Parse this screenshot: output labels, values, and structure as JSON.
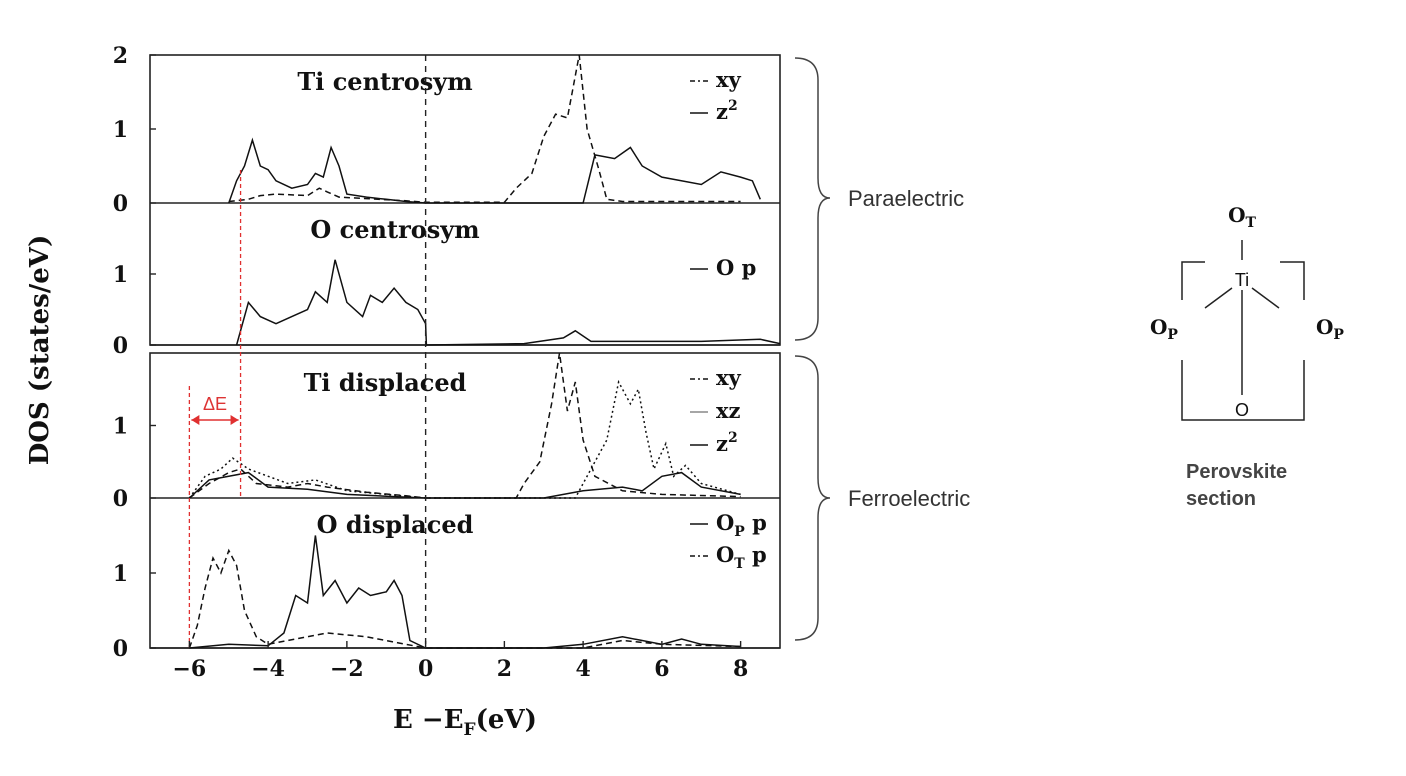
{
  "chart_data": {
    "type": "line",
    "xlabel": "E −E",
    "xlabel_sub": "F",
    "xlabel_unit": "(eV)",
    "ylabel": "DOS (states/eV)",
    "xlim": [
      -7,
      9
    ],
    "xticks": [
      "−6",
      "−4",
      "−2",
      "0",
      "2",
      "4",
      "6",
      "8"
    ],
    "xtick_values": [
      -6,
      -4,
      -2,
      0,
      2,
      4,
      6,
      8
    ],
    "fermi_level": 0,
    "panels": [
      {
        "title": "Ti centrosym",
        "ylim": [
          0,
          2
        ],
        "yticks": [
          "0",
          "1",
          "2"
        ],
        "ytick_values": [
          0,
          1,
          2
        ],
        "legend": [
          {
            "label": "xy",
            "style": "dash-dot"
          },
          {
            "label": "z",
            "sup": "2",
            "style": "solid"
          }
        ],
        "series": [
          {
            "label": "xy",
            "style": "dashed",
            "points": [
              [
                -5,
                0.02
              ],
              [
                -4.5,
                0.05
              ],
              [
                -4.2,
                0.1
              ],
              [
                -3.8,
                0.12
              ],
              [
                -3,
                0.1
              ],
              [
                -2.7,
                0.2
              ],
              [
                -2.5,
                0.15
              ],
              [
                -2.2,
                0.08
              ],
              [
                -1.5,
                0.06
              ],
              [
                -0.5,
                0.03
              ],
              [
                0,
                0.01
              ],
              [
                2,
                0.01
              ],
              [
                2.3,
                0.2
              ],
              [
                2.7,
                0.4
              ],
              [
                3,
                0.9
              ],
              [
                3.3,
                1.2
              ],
              [
                3.6,
                1.15
              ],
              [
                3.9,
                2.0
              ],
              [
                4.1,
                1.0
              ],
              [
                4.4,
                0.45
              ],
              [
                4.6,
                0.05
              ],
              [
                5,
                0.02
              ],
              [
                8,
                0.02
              ]
            ]
          },
          {
            "label": "z2",
            "style": "solid",
            "points": [
              [
                -5,
                0
              ],
              [
                -4.8,
                0.3
              ],
              [
                -4.6,
                0.5
              ],
              [
                -4.4,
                0.85
              ],
              [
                -4.2,
                0.5
              ],
              [
                -4,
                0.45
              ],
              [
                -3.8,
                0.3
              ],
              [
                -3.4,
                0.2
              ],
              [
                -3,
                0.25
              ],
              [
                -2.8,
                0.4
              ],
              [
                -2.6,
                0.35
              ],
              [
                -2.4,
                0.75
              ],
              [
                -2.2,
                0.5
              ],
              [
                -2,
                0.12
              ],
              [
                -1.5,
                0.08
              ],
              [
                -1,
                0.05
              ],
              [
                -0.5,
                0.02
              ],
              [
                0,
                0
              ],
              [
                4,
                0
              ],
              [
                4.3,
                0.65
              ],
              [
                4.8,
                0.6
              ],
              [
                5.2,
                0.75
              ],
              [
                5.5,
                0.5
              ],
              [
                6,
                0.35
              ],
              [
                7,
                0.25
              ],
              [
                7.5,
                0.42
              ],
              [
                8,
                0.35
              ],
              [
                8.3,
                0.3
              ],
              [
                8.5,
                0.05
              ]
            ]
          }
        ]
      },
      {
        "title": "O centrosym",
        "ylim": [
          0,
          2
        ],
        "yticks": [
          "0",
          "1"
        ],
        "ytick_values": [
          0,
          1
        ],
        "legend": [
          {
            "label": "O p",
            "style": "solid"
          }
        ],
        "series": [
          {
            "label": "O p",
            "style": "solid",
            "points": [
              [
                -4.8,
                0
              ],
              [
                -4.5,
                0.6
              ],
              [
                -4.2,
                0.4
              ],
              [
                -3.8,
                0.3
              ],
              [
                -3.4,
                0.4
              ],
              [
                -3,
                0.5
              ],
              [
                -2.8,
                0.75
              ],
              [
                -2.5,
                0.6
              ],
              [
                -2.3,
                1.2
              ],
              [
                -2,
                0.6
              ],
              [
                -1.6,
                0.4
              ],
              [
                -1.4,
                0.7
              ],
              [
                -1.1,
                0.6
              ],
              [
                -0.8,
                0.8
              ],
              [
                -0.5,
                0.6
              ],
              [
                -0.2,
                0.5
              ],
              [
                0,
                0.3
              ],
              [
                0.02,
                0
              ],
              [
                2.5,
                0.02
              ],
              [
                3.5,
                0.1
              ],
              [
                3.8,
                0.2
              ],
              [
                4.2,
                0.05
              ],
              [
                7,
                0.05
              ],
              [
                8.5,
                0.08
              ],
              [
                9,
                0.02
              ]
            ]
          }
        ]
      },
      {
        "title": "Ti displaced",
        "ylim": [
          0,
          2
        ],
        "yticks": [
          "0",
          "1"
        ],
        "ytick_values": [
          0,
          1
        ],
        "legend": [
          {
            "label": "xy",
            "style": "dash-dot"
          },
          {
            "label": "xz",
            "style": "thin"
          },
          {
            "label": "z",
            "sup": "2",
            "style": "solid"
          }
        ],
        "series": [
          {
            "label": "xy",
            "style": "dashed",
            "points": [
              [
                -6,
                0
              ],
              [
                -5.5,
                0.2
              ],
              [
                -5,
                0.35
              ],
              [
                -4.7,
                0.4
              ],
              [
                -4.3,
                0.2
              ],
              [
                -3.5,
                0.15
              ],
              [
                -3,
                0.2
              ],
              [
                -2.5,
                0.15
              ],
              [
                -1.5,
                0.08
              ],
              [
                -0.5,
                0.03
              ],
              [
                0,
                0
              ],
              [
                2.3,
                0
              ],
              [
                2.5,
                0.2
              ],
              [
                2.9,
                0.5
              ],
              [
                3.2,
                1.3
              ],
              [
                3.4,
                2.0
              ],
              [
                3.6,
                1.2
              ],
              [
                3.8,
                1.6
              ],
              [
                4,
                0.8
              ],
              [
                4.3,
                0.3
              ],
              [
                5,
                0.1
              ],
              [
                6,
                0.05
              ],
              [
                8,
                0.02
              ]
            ]
          },
          {
            "label": "xz",
            "style": "dotted",
            "points": [
              [
                -6,
                0
              ],
              [
                -5.6,
                0.3
              ],
              [
                -5.2,
                0.4
              ],
              [
                -4.9,
                0.55
              ],
              [
                -4.5,
                0.4
              ],
              [
                -4,
                0.3
              ],
              [
                -3.5,
                0.2
              ],
              [
                -2.8,
                0.25
              ],
              [
                -2,
                0.1
              ],
              [
                -1,
                0.05
              ],
              [
                0,
                0
              ],
              [
                3.8,
                0
              ],
              [
                4.2,
                0.4
              ],
              [
                4.6,
                0.8
              ],
              [
                4.9,
                1.6
              ],
              [
                5.2,
                1.3
              ],
              [
                5.4,
                1.5
              ],
              [
                5.6,
                0.9
              ],
              [
                5.8,
                0.4
              ],
              [
                6.1,
                0.75
              ],
              [
                6.3,
                0.3
              ],
              [
                6.6,
                0.45
              ],
              [
                7,
                0.2
              ],
              [
                8,
                0.05
              ]
            ]
          },
          {
            "label": "z2",
            "style": "solid",
            "points": [
              [
                -6,
                0
              ],
              [
                -5.5,
                0.25
              ],
              [
                -5,
                0.3
              ],
              [
                -4.5,
                0.35
              ],
              [
                -4,
                0.15
              ],
              [
                -3,
                0.12
              ],
              [
                -2,
                0.05
              ],
              [
                0,
                0
              ],
              [
                3,
                0
              ],
              [
                4,
                0.1
              ],
              [
                5,
                0.15
              ],
              [
                5.5,
                0.1
              ],
              [
                6,
                0.3
              ],
              [
                6.5,
                0.35
              ],
              [
                7,
                0.15
              ],
              [
                8,
                0.05
              ]
            ]
          }
        ]
      },
      {
        "title": "O displaced",
        "ylim": [
          0,
          2
        ],
        "yticks": [
          "0",
          "1"
        ],
        "ytick_values": [
          0,
          1
        ],
        "legend": [
          {
            "label": "O",
            "sub": "P",
            "suffix": " p",
            "style": "solid"
          },
          {
            "label": "O",
            "sub": "T",
            "suffix": " p",
            "style": "dash-dot"
          }
        ],
        "series": [
          {
            "label": "OP p",
            "style": "solid",
            "points": [
              [
                -6,
                0
              ],
              [
                -5,
                0.05
              ],
              [
                -4,
                0.03
              ],
              [
                -3.6,
                0.2
              ],
              [
                -3.3,
                0.7
              ],
              [
                -3,
                0.6
              ],
              [
                -2.8,
                1.5
              ],
              [
                -2.6,
                0.7
              ],
              [
                -2.3,
                0.9
              ],
              [
                -2,
                0.6
              ],
              [
                -1.7,
                0.8
              ],
              [
                -1.4,
                0.7
              ],
              [
                -1,
                0.75
              ],
              [
                -0.8,
                0.9
              ],
              [
                -0.6,
                0.7
              ],
              [
                -0.4,
                0.1
              ],
              [
                0,
                0
              ],
              [
                3,
                0
              ],
              [
                4,
                0.05
              ],
              [
                5,
                0.15
              ],
              [
                5.5,
                0.1
              ],
              [
                6,
                0.05
              ],
              [
                6.5,
                0.12
              ],
              [
                7,
                0.05
              ],
              [
                8,
                0.02
              ]
            ]
          },
          {
            "label": "OT p",
            "style": "dashed",
            "points": [
              [
                -6,
                0
              ],
              [
                -5.8,
                0.3
              ],
              [
                -5.6,
                0.8
              ],
              [
                -5.4,
                1.2
              ],
              [
                -5.2,
                1.0
              ],
              [
                -5,
                1.3
              ],
              [
                -4.8,
                1.1
              ],
              [
                -4.6,
                0.5
              ],
              [
                -4.3,
                0.15
              ],
              [
                -4,
                0.05
              ],
              [
                -3.5,
                0.1
              ],
              [
                -2.5,
                0.2
              ],
              [
                -1.5,
                0.15
              ],
              [
                -0.5,
                0.05
              ],
              [
                0,
                0
              ],
              [
                4,
                0
              ],
              [
                5,
                0.1
              ],
              [
                6,
                0.05
              ],
              [
                8,
                0.02
              ]
            ]
          }
        ]
      }
    ],
    "annotations": [
      {
        "label": "ΔE",
        "from": -6,
        "to": -4.7
      }
    ],
    "groups": [
      {
        "label": "Paraelectric",
        "panels": [
          0,
          1
        ]
      },
      {
        "label": "Ferroelectric",
        "panels": [
          2,
          3
        ]
      }
    ]
  },
  "molecule": {
    "top": "O",
    "top_sub": "T",
    "center": "Ti",
    "left": "O",
    "left_sub": "P",
    "right": "O",
    "right_sub": "P",
    "bottom": "O",
    "caption_line1": "Perovskite",
    "caption_line2": "section"
  }
}
